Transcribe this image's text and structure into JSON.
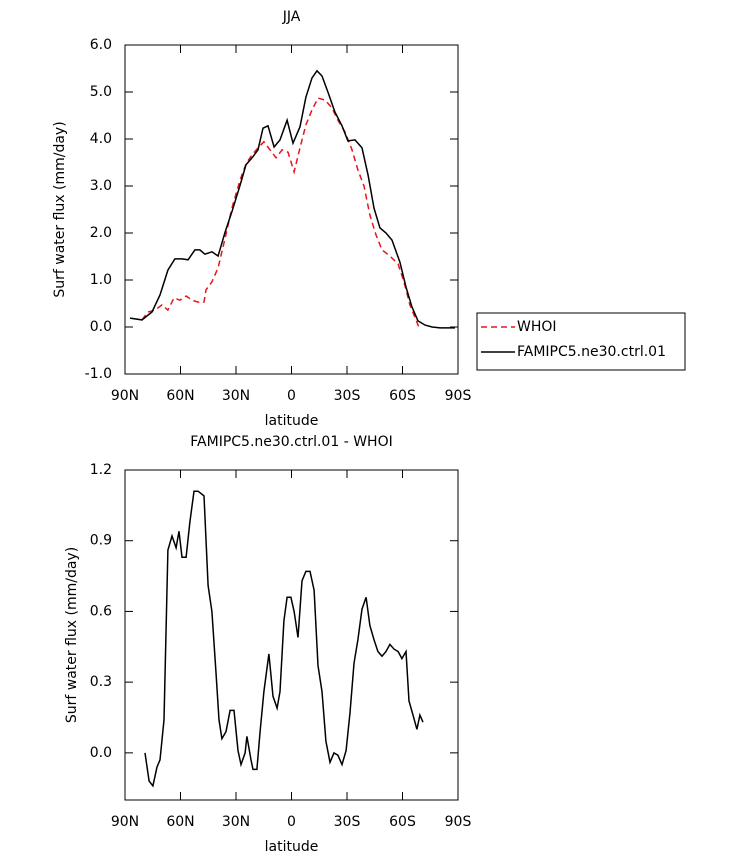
{
  "chart_data": [
    {
      "type": "line",
      "title": "JJA",
      "xlabel": "latitude",
      "ylabel": "Surf water flux (mm/day)",
      "xlim": [
        90,
        -90
      ],
      "xticks": [
        {
          "value": 90,
          "label": "90N"
        },
        {
          "value": 60,
          "label": "60N"
        },
        {
          "value": 30,
          "label": "30N"
        },
        0,
        {
          "value": -30,
          "label": "30S"
        },
        {
          "value": -60,
          "label": "60S"
        },
        {
          "value": -90,
          "label": "90S"
        }
      ],
      "ylim": [
        -1,
        6
      ],
      "yticks": [
        {
          "value": -1,
          "label": "-1.0"
        },
        {
          "value": 0,
          "label": "0.0"
        },
        {
          "value": 1,
          "label": "1.0"
        },
        {
          "value": 2,
          "label": "2.0"
        },
        {
          "value": 3,
          "label": "3.0"
        },
        {
          "value": 4,
          "label": "4.0"
        },
        {
          "value": 5,
          "label": "5.0"
        },
        {
          "value": 6,
          "label": "6.0"
        }
      ],
      "legend": "outside-right",
      "series": [
        {
          "name": "WHOI",
          "color": "#e8141c",
          "dash": true,
          "x": [
            80.8,
            77.6,
            73.8,
            70.0,
            66.8,
            63.5,
            60.3,
            57.0,
            53.8,
            50.5,
            47.3,
            46.2,
            43.0,
            39.7,
            35.9,
            32.2,
            27.8,
            24.6,
            21.4,
            18.1,
            14.9,
            11.6,
            8.4,
            5.1,
            1.9,
            -1.4,
            -4.6,
            -7.8,
            -11.1,
            -14.3,
            -18.1,
            -21.9,
            -25.1,
            -28.9,
            -32.7,
            -35.9,
            -39.2,
            -42.4,
            -45.7,
            -48.9,
            -53.2,
            -57.6,
            -60.8,
            -64.0,
            -67.3,
            -69.4
          ],
          "values": [
            0.15,
            0.32,
            0.36,
            0.47,
            0.36,
            0.62,
            0.57,
            0.66,
            0.57,
            0.53,
            0.53,
            0.79,
            0.96,
            1.26,
            1.89,
            2.53,
            3.13,
            3.47,
            3.66,
            3.81,
            3.94,
            3.77,
            3.6,
            3.77,
            3.72,
            3.3,
            3.81,
            4.3,
            4.62,
            4.87,
            4.83,
            4.66,
            4.4,
            4.15,
            3.77,
            3.34,
            3.0,
            2.38,
            1.96,
            1.64,
            1.51,
            1.34,
            0.96,
            0.47,
            0.15,
            -0.06
          ]
        },
        {
          "name": "FAMIPC5.ne30.ctrl.01",
          "color": "#000000",
          "dash": false,
          "x": [
            87.3,
            80.8,
            75.4,
            71.1,
            66.8,
            63.0,
            59.2,
            55.9,
            52.2,
            49.5,
            46.8,
            43.0,
            39.7,
            35.9,
            32.2,
            27.8,
            24.6,
            21.3,
            18.1,
            15.4,
            12.7,
            9.4,
            6.2,
            2.4,
            -0.8,
            -4.6,
            -7.8,
            -11.1,
            -13.8,
            -16.5,
            -19.7,
            -23.5,
            -27.3,
            -30.5,
            -34.3,
            -38.1,
            -41.4,
            -44.6,
            -47.8,
            -51.1,
            -54.3,
            -58.6,
            -61.9,
            -65.1,
            -68.4,
            -72.2,
            -76.0,
            -80.3,
            -88.4
          ],
          "values": [
            0.19,
            0.15,
            0.32,
            0.68,
            1.21,
            1.45,
            1.45,
            1.43,
            1.64,
            1.64,
            1.55,
            1.6,
            1.51,
            2.02,
            2.45,
            3.02,
            3.45,
            3.6,
            3.77,
            4.23,
            4.28,
            3.83,
            3.98,
            4.4,
            3.91,
            4.26,
            4.89,
            5.3,
            5.45,
            5.34,
            5.0,
            4.57,
            4.28,
            3.96,
            3.98,
            3.81,
            3.23,
            2.53,
            2.11,
            2.0,
            1.85,
            1.38,
            0.85,
            0.43,
            0.13,
            0.04,
            0.0,
            -0.02,
            -0.02
          ]
        }
      ]
    },
    {
      "type": "line",
      "title": "FAMIPC5.ne30.ctrl.01 - WHOI",
      "xlabel": "latitude",
      "ylabel": "Surf water flux (mm/day)",
      "xlim": [
        90,
        -90
      ],
      "xticks": [
        {
          "value": 90,
          "label": "90N"
        },
        {
          "value": 60,
          "label": "60N"
        },
        {
          "value": 30,
          "label": "30N"
        },
        0,
        {
          "value": -30,
          "label": "30S"
        },
        {
          "value": -60,
          "label": "60S"
        },
        {
          "value": -90,
          "label": "90S"
        }
      ],
      "ylim": [
        -0.2,
        1.2
      ],
      "yticks": [
        {
          "value": 0,
          "label": "0.0"
        },
        0.3,
        0.6,
        0.9,
        1.2
      ],
      "color": "#000000",
      "x": [
        79.2,
        77.0,
        74.9,
        72.7,
        71.1,
        68.9,
        66.8,
        64.6,
        62.4,
        60.8,
        59.2,
        57.0,
        54.9,
        52.7,
        50.5,
        47.3,
        45.1,
        43.0,
        40.8,
        39.2,
        37.6,
        35.4,
        33.2,
        31.1,
        28.9,
        27.3,
        25.1,
        24.1,
        21.9,
        20.8,
        18.7,
        17.0,
        14.9,
        12.2,
        10.0,
        7.8,
        6.2,
        4.1,
        2.4,
        0.3,
        -1.4,
        -3.5,
        -5.7,
        -7.8,
        -10.0,
        -12.2,
        -14.3,
        -16.5,
        -18.6,
        -20.8,
        -23.0,
        -25.1,
        -27.3,
        -29.5,
        -31.6,
        -33.8,
        -35.9,
        -38.1,
        -40.3,
        -42.4,
        -44.6,
        -46.7,
        -48.9,
        -51.1,
        -53.2,
        -55.4,
        -57.6,
        -59.7,
        -61.9,
        -63.5,
        -65.7,
        -67.8,
        -69.4,
        -71.1
      ],
      "values": [
        0.0,
        -0.12,
        -0.14,
        -0.06,
        -0.03,
        0.14,
        0.86,
        0.92,
        0.87,
        0.94,
        0.83,
        0.83,
        0.98,
        1.11,
        1.11,
        1.09,
        0.71,
        0.6,
        0.34,
        0.14,
        0.06,
        0.09,
        0.18,
        0.18,
        0.01,
        -0.05,
        0.0,
        0.07,
        -0.03,
        -0.07,
        -0.07,
        0.09,
        0.26,
        0.42,
        0.24,
        0.19,
        0.26,
        0.56,
        0.66,
        0.66,
        0.6,
        0.49,
        0.73,
        0.77,
        0.77,
        0.69,
        0.37,
        0.26,
        0.05,
        -0.04,
        0.0,
        -0.01,
        -0.05,
        0.01,
        0.17,
        0.38,
        0.48,
        0.61,
        0.66,
        0.54,
        0.48,
        0.43,
        0.41,
        0.43,
        0.46,
        0.44,
        0.43,
        0.4,
        0.43,
        0.22,
        0.16,
        0.1,
        0.16,
        0.13
      ]
    }
  ]
}
